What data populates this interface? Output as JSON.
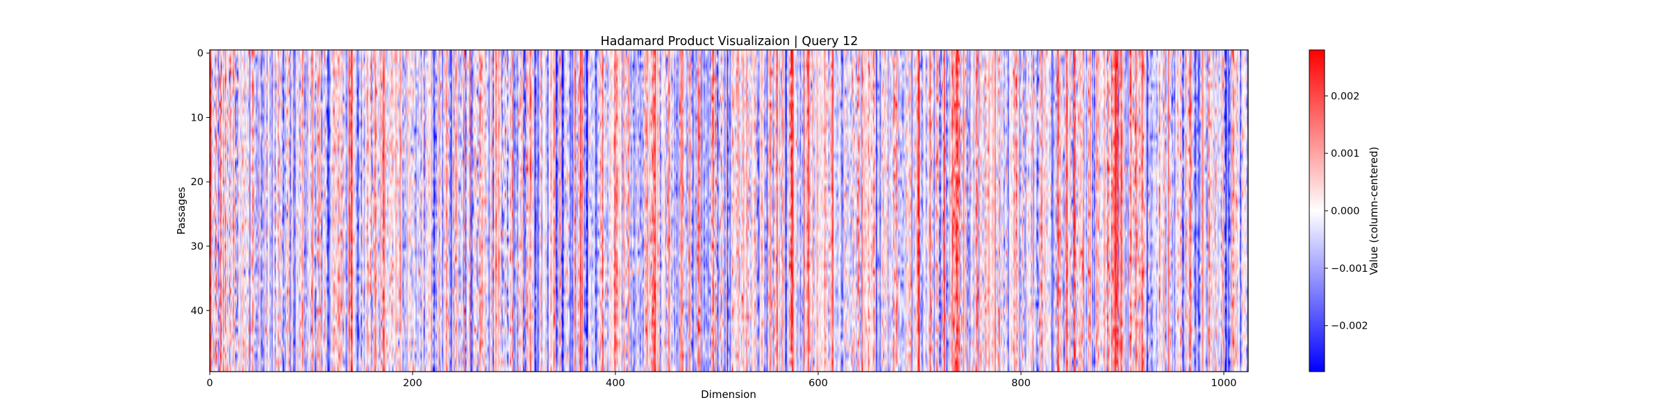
{
  "chart_data": {
    "type": "heatmap",
    "title": "Hadamard Product Visualizaion | Query 12",
    "xlabel": "Dimension",
    "ylabel": "Passages",
    "xlim": [
      0,
      1024
    ],
    "ylim": [
      49.5,
      -0.5
    ],
    "n_rows": 50,
    "n_cols": 1024,
    "x_ticks": [
      0,
      200,
      400,
      600,
      800,
      1000
    ],
    "y_ticks": [
      0,
      10,
      20,
      30,
      40
    ],
    "colormap": "bwr",
    "colorbar": {
      "label": "Value (column-centered)",
      "vmin": -0.0028,
      "vmax": 0.0028,
      "ticks": [
        -0.002,
        -0.001,
        0.0,
        0.001,
        0.002
      ],
      "tick_labels": [
        "−0.002",
        "−0.001",
        "0.000",
        "0.001",
        "0.002"
      ]
    },
    "colors": {
      "low": "#0000ff",
      "mid": "#ffffff",
      "high": "#ff0000"
    }
  }
}
